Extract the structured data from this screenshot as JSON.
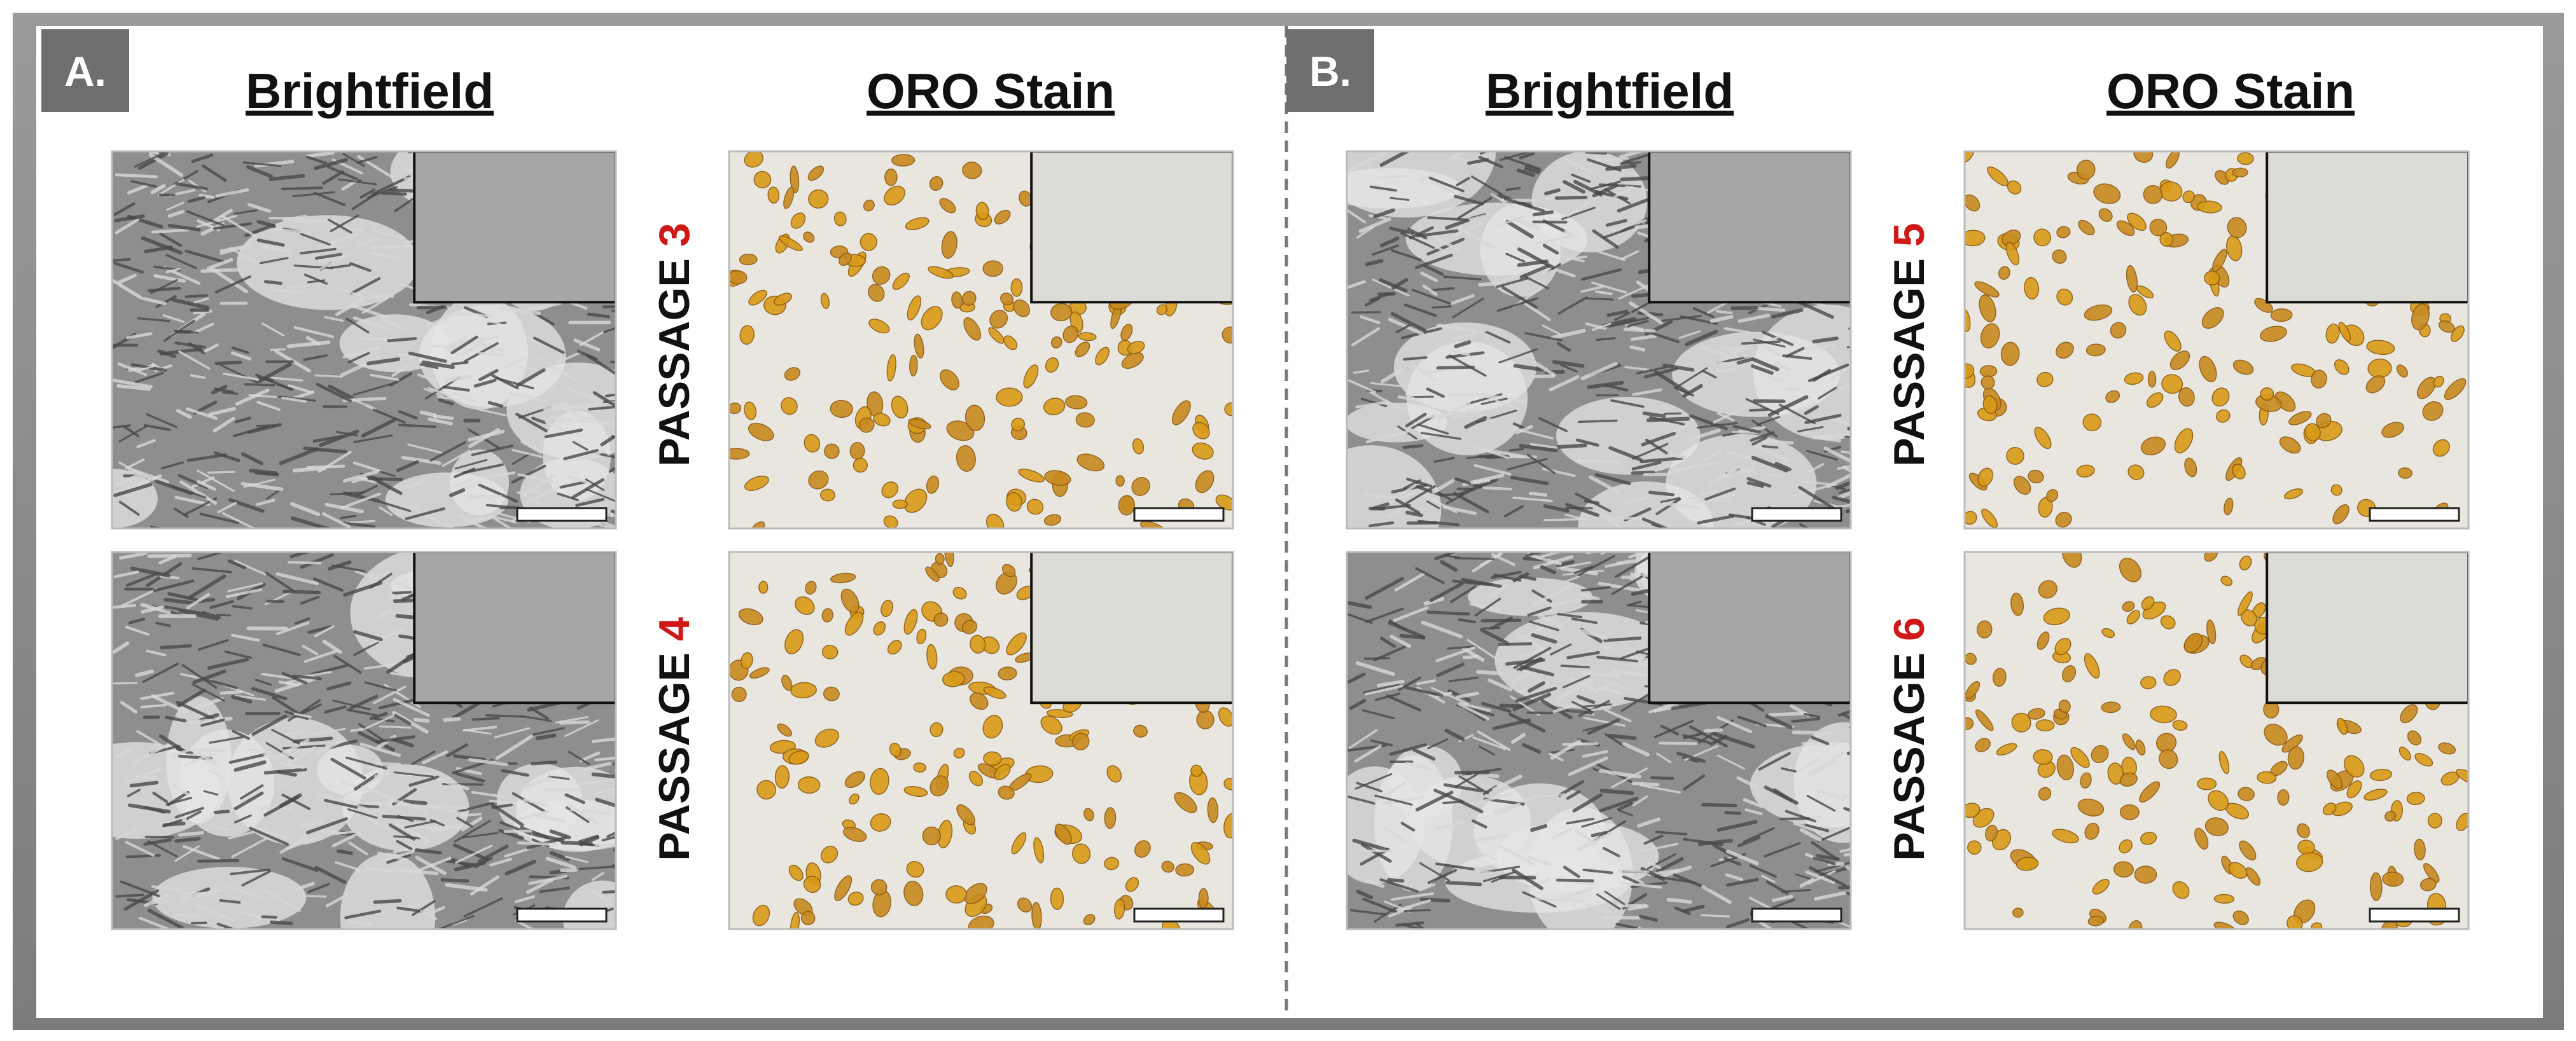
{
  "panels": [
    {
      "label": "A.",
      "columns": [
        "Brightfield",
        "ORO Stain"
      ],
      "rows": [
        {
          "passage": "PASSAGE",
          "number": "3"
        },
        {
          "passage": "PASSAGE",
          "number": "4"
        }
      ]
    },
    {
      "label": "B.",
      "columns": [
        "Brightfield",
        "ORO Stain"
      ],
      "rows": [
        {
          "passage": "PASSAGE",
          "number": "5"
        },
        {
          "passage": "PASSAGE",
          "number": "6"
        }
      ]
    }
  ]
}
